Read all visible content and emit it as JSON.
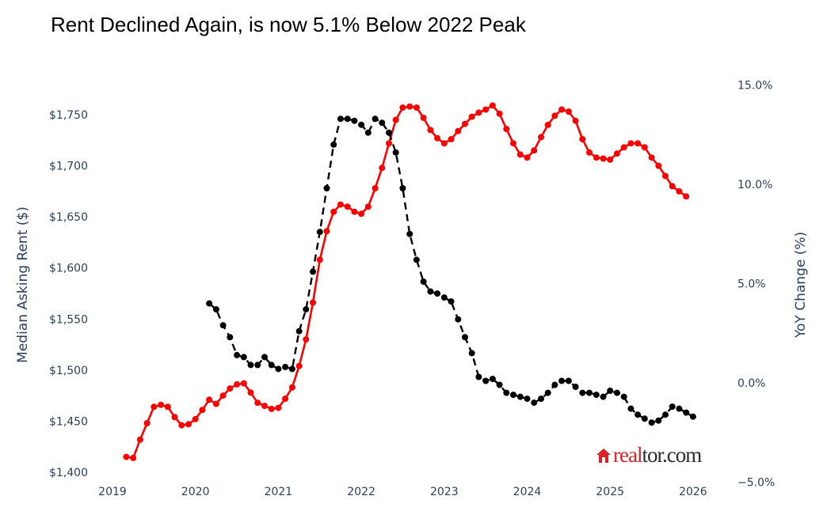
{
  "chart_data": {
    "type": "line",
    "title": "Rent Declined Again, is now 5.1% Below 2022 Peak",
    "ylabel_left": "Median Asking Rent ($)",
    "ylabel_right": "YoY Change (%)",
    "x_ticks": [
      "2019",
      "2020",
      "2021",
      "2022",
      "2023",
      "2024",
      "2025",
      "2026"
    ],
    "y_left_ticks": [
      "$1,400",
      "$1,450",
      "$1,500",
      "$1,550",
      "$1,600",
      "$1,650",
      "$1,700",
      "$1,750"
    ],
    "y_right_ticks": [
      "−5.0%",
      "0.0%",
      "5.0%",
      "10.0%",
      "15.0%"
    ],
    "ylim_left": [
      1400,
      1790
    ],
    "ylim_right": [
      -5,
      15
    ],
    "grid": false,
    "series": [
      {
        "axis": "left",
        "color": "#ff0000",
        "style": "solid",
        "start": "2019-03",
        "values": [
          1415,
          1414,
          1432,
          1448,
          1464,
          1466,
          1464,
          1454,
          1446,
          1447,
          1452,
          1461,
          1471,
          1467,
          1475,
          1482,
          1486,
          1487,
          1478,
          1468,
          1465,
          1462,
          1463,
          1472,
          1483,
          1504,
          1530,
          1566,
          1608,
          1636,
          1655,
          1662,
          1660,
          1655,
          1653,
          1660,
          1678,
          1698,
          1722,
          1745,
          1757,
          1758,
          1757,
          1747,
          1735,
          1727,
          1722,
          1726,
          1734,
          1741,
          1748,
          1752,
          1755,
          1759,
          1751,
          1736,
          1722,
          1711,
          1708,
          1715,
          1728,
          1740,
          1749,
          1755,
          1753,
          1744,
          1726,
          1713,
          1708,
          1707,
          1706,
          1712,
          1718,
          1722,
          1722,
          1718,
          1708,
          1700,
          1690,
          1680,
          1675,
          1670
        ]
      },
      {
        "axis": "right",
        "color": "#000000",
        "style": "dash",
        "start": "2020-03",
        "values": [
          4.0,
          3.7,
          2.9,
          2.3,
          1.4,
          1.3,
          0.9,
          0.9,
          1.3,
          0.9,
          0.7,
          0.8,
          0.7,
          2.6,
          3.7,
          5.6,
          7.6,
          9.8,
          12.0,
          13.3,
          13.3,
          13.2,
          13.0,
          12.6,
          13.3,
          13.1,
          12.6,
          11.6,
          9.8,
          7.5,
          6.2,
          5.1,
          4.6,
          4.5,
          4.3,
          4.1,
          3.2,
          2.3,
          1.5,
          0.3,
          0.1,
          0.2,
          -0.1,
          -0.5,
          -0.6,
          -0.7,
          -0.8,
          -1.0,
          -0.8,
          -0.5,
          -0.1,
          0.1,
          0.1,
          -0.2,
          -0.5,
          -0.5,
          -0.6,
          -0.7,
          -0.4,
          -0.5,
          -0.7,
          -1.3,
          -1.6,
          -1.8,
          -2.0,
          -1.9,
          -1.6,
          -1.2,
          -1.3,
          -1.5,
          -1.7
        ]
      }
    ]
  },
  "logo_text": "realtor.com"
}
